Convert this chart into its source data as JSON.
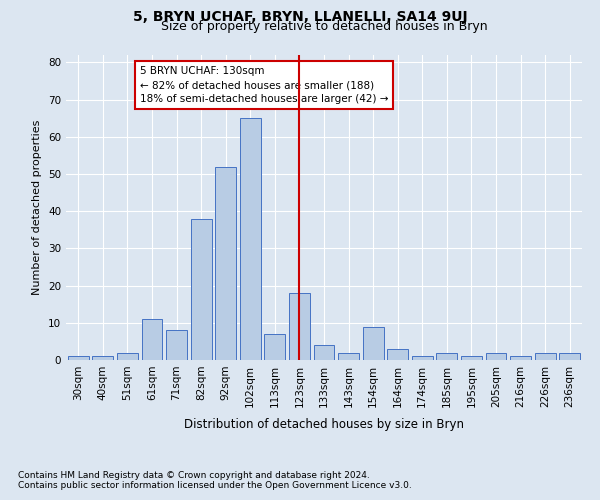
{
  "title": "5, BRYN UCHAF, BRYN, LLANELLI, SA14 9UJ",
  "subtitle": "Size of property relative to detached houses in Bryn",
  "xlabel": "Distribution of detached houses by size in Bryn",
  "ylabel": "Number of detached properties",
  "categories": [
    "30sqm",
    "40sqm",
    "51sqm",
    "61sqm",
    "71sqm",
    "82sqm",
    "92sqm",
    "102sqm",
    "113sqm",
    "123sqm",
    "133sqm",
    "143sqm",
    "154sqm",
    "164sqm",
    "174sqm",
    "185sqm",
    "195sqm",
    "205sqm",
    "216sqm",
    "226sqm",
    "236sqm"
  ],
  "values": [
    1,
    1,
    2,
    11,
    8,
    38,
    52,
    65,
    7,
    18,
    4,
    2,
    9,
    3,
    1,
    2,
    1,
    2,
    1,
    2,
    2
  ],
  "bar_color": "#b8cce4",
  "bar_edge_color": "#4472c4",
  "background_color": "#dce6f1",
  "grid_color": "#ffffff",
  "vline_x": 9.0,
  "vline_color": "#cc0000",
  "annotation_text": "5 BRYN UCHAF: 130sqm\n← 82% of detached houses are smaller (188)\n18% of semi-detached houses are larger (42) →",
  "annotation_box_color": "#ffffff",
  "annotation_box_edge": "#cc0000",
  "ylim": [
    0,
    82
  ],
  "yticks": [
    0,
    10,
    20,
    30,
    40,
    50,
    60,
    70,
    80
  ],
  "footnote": "Contains HM Land Registry data © Crown copyright and database right 2024.\nContains public sector information licensed under the Open Government Licence v3.0.",
  "title_fontsize": 10,
  "subtitle_fontsize": 9,
  "xlabel_fontsize": 8.5,
  "ylabel_fontsize": 8,
  "tick_fontsize": 7.5,
  "annotation_fontsize": 7.5,
  "footnote_fontsize": 6.5
}
